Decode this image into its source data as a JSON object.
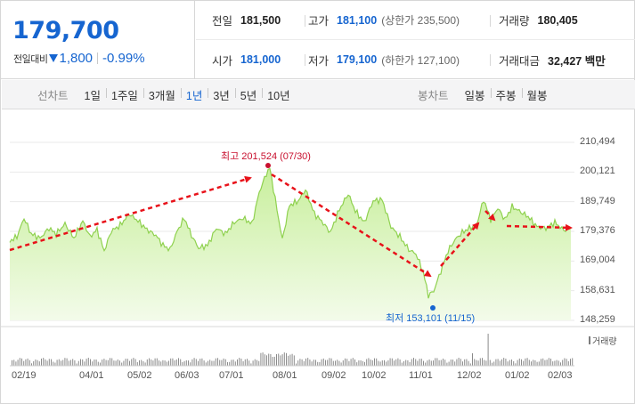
{
  "price": {
    "current": "179,700",
    "change_label": "전일대비",
    "change_value": "1,800",
    "change_pct": "-0.99%",
    "direction": "down"
  },
  "stats": {
    "prev_close": {
      "label": "전일",
      "value": "181,500"
    },
    "high": {
      "label": "고가",
      "value": "181,100",
      "sub": "(상한가 235,500)"
    },
    "volume": {
      "label": "거래량",
      "value": "180,405"
    },
    "open": {
      "label": "시가",
      "value": "181,000"
    },
    "low": {
      "label": "저가",
      "value": "179,100",
      "sub": "(하한가 127,100)"
    },
    "amount": {
      "label": "거래대금",
      "value": "32,427 백만"
    }
  },
  "toolbar": {
    "line_title": "선차트",
    "line_periods": [
      "1일",
      "1주일",
      "3개월",
      "1년",
      "3년",
      "5년",
      "10년"
    ],
    "active_period": "1년",
    "candle_title": "봉차트",
    "candle_periods": [
      "일봉",
      "주봉",
      "월봉"
    ]
  },
  "chart_data": {
    "type": "area",
    "y_ticks": [
      "210,494",
      "200,121",
      "189,749",
      "179,376",
      "169,004",
      "158,631",
      "148,259"
    ],
    "x_ticks": [
      "02/19",
      "04/01",
      "05/02",
      "06/03",
      "07/01",
      "08/01",
      "09/02",
      "10/02",
      "11/01",
      "12/02",
      "01/02",
      "02/03"
    ],
    "ylim": [
      148259,
      210494
    ],
    "high_annotation": "최고 201,524 (07/30)",
    "low_annotation": "최저 153,101 (11/15)",
    "volume_legend": "거래량",
    "colors": {
      "line": "#8fd14f",
      "fill_top": "#c8ef9c",
      "fill_bottom": "#f3fbea",
      "arrow": "#e8121a",
      "high": "#c8102e",
      "low": "#1665d0",
      "volume": "#8a8a8a"
    }
  }
}
